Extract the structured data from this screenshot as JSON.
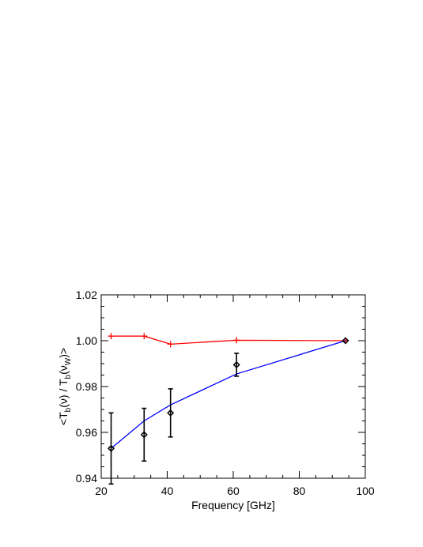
{
  "chart_data": {
    "type": "line",
    "xlabel": "Frequency [GHz]",
    "ylabel": {
      "p1": "<T",
      "s1": "b",
      "p2": "(ν) / T",
      "s2": "b",
      "p3": "(ν",
      "s3": "W",
      "p4": ")>"
    },
    "xlim": [
      20,
      100
    ],
    "ylim": [
      0.94,
      1.02
    ],
    "xticks": [
      20,
      40,
      60,
      80,
      100
    ],
    "xtick_labels": [
      "20",
      "40",
      "60",
      "80",
      "100"
    ],
    "yticks": [
      0.94,
      0.96,
      0.98,
      1.0,
      1.02
    ],
    "ytick_labels": [
      "0.94",
      "0.96",
      "0.98",
      "1.00",
      "1.02"
    ],
    "grid": false,
    "series": [
      {
        "style": "line-plus",
        "color": "#ff0000",
        "x": [
          23,
          33,
          41,
          61,
          94
        ],
        "y": [
          1.002,
          1.002,
          0.9985,
          1.0002,
          1.0
        ]
      },
      {
        "style": "line",
        "color": "#0000ff",
        "x": [
          23,
          33,
          41,
          61,
          94
        ],
        "y": [
          0.953,
          0.965,
          0.972,
          0.9855,
          1.0
        ]
      },
      {
        "style": "diamond-errorbar",
        "color": "#000000",
        "x": [
          23,
          33,
          41,
          61,
          94
        ],
        "y": [
          0.953,
          0.959,
          0.9685,
          0.9895,
          1.0
        ],
        "yerr": [
          0.0155,
          0.0115,
          0.0105,
          0.005,
          0.0
        ]
      }
    ]
  }
}
